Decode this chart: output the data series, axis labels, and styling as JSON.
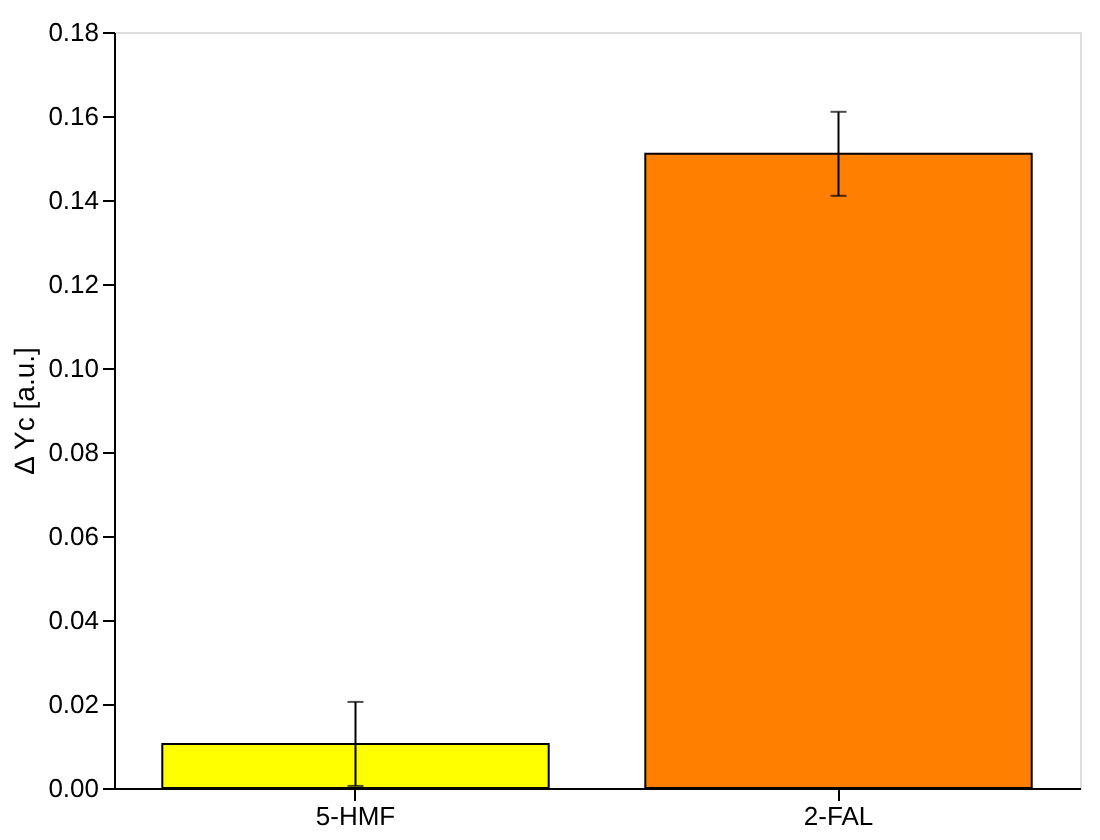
{
  "chart_data": {
    "type": "bar",
    "ylabel": "Δ Yc [a.u.]",
    "categories": [
      "5-HMF",
      "2-FAL"
    ],
    "values": [
      0.0105,
      0.151
    ],
    "colors": [
      "#ffff00",
      "#ff8000"
    ],
    "errors": [
      0.01,
      0.01
    ],
    "ylim": [
      0,
      0.18
    ],
    "yticks": [
      {
        "value": 0,
        "label": "0.00"
      },
      {
        "value": 0.02,
        "label": "0.02"
      },
      {
        "value": 0.04,
        "label": "0.04"
      },
      {
        "value": 0.06,
        "label": "0.06"
      },
      {
        "value": 0.08,
        "label": "0.08"
      },
      {
        "value": 0.1,
        "label": "0.10"
      },
      {
        "value": 0.12,
        "label": "0.12"
      },
      {
        "value": 0.14,
        "label": "0.14"
      },
      {
        "value": 0.16,
        "label": "0.16"
      },
      {
        "value": 0.18,
        "label": "0.18"
      }
    ],
    "grid": false,
    "legend": false
  }
}
